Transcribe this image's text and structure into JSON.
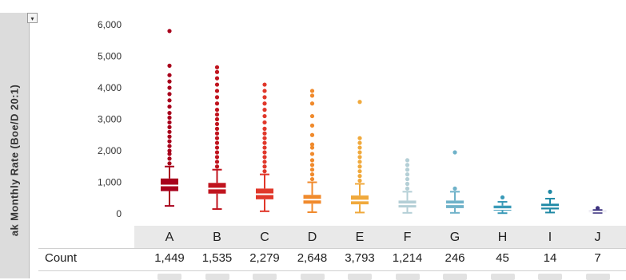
{
  "title_text": "",
  "ylabel_text": "ak Monthly Rate (Boe/D 20:1)",
  "menu_glyph": "▾",
  "stats": {
    "count_label": "Count"
  },
  "chart_data": {
    "type": "box",
    "title": "",
    "xlabel": "",
    "ylabel": "ak Monthly Rate (Boe/D 20:1)",
    "ylim": [
      -250,
      6200
    ],
    "yticks": [
      0,
      1000,
      2000,
      3000,
      4000,
      5000,
      6000
    ],
    "ytick_labels": [
      "0",
      "1,000",
      "2,000",
      "3,000",
      "4,000",
      "5,000",
      "6,000"
    ],
    "grid": false,
    "legend": "none",
    "categories": [
      "A",
      "B",
      "C",
      "D",
      "E",
      "F",
      "G",
      "H",
      "I",
      "J"
    ],
    "counts": [
      "1,449",
      "1,535",
      "2,279",
      "2,648",
      "3,793",
      "1,214",
      "246",
      "45",
      "14",
      "7"
    ],
    "colors": [
      "#a8001c",
      "#c0141e",
      "#e0372a",
      "#f08a2c",
      "#f0a93c",
      "#b4cfd6",
      "#6fb2c9",
      "#3a9ab8",
      "#1f89a5",
      "#3d3380"
    ],
    "boxes": [
      {
        "q1": 720,
        "median": 900,
        "q3": 1120,
        "whisker_low": 250,
        "whisker_high": 1500,
        "outliers": [
          1600,
          1750,
          1900,
          2000,
          2150,
          2300,
          2450,
          2600,
          2750,
          2900,
          3050,
          3200,
          3400,
          3600,
          3800,
          4000,
          4200,
          4400,
          4700,
          5800
        ]
      },
      {
        "q1": 640,
        "median": 800,
        "q3": 980,
        "whisker_low": 150,
        "whisker_high": 1400,
        "outliers": [
          1500,
          1650,
          1800,
          1950,
          2100,
          2250,
          2400,
          2550,
          2700,
          2850,
          3000,
          3150,
          3300,
          3500,
          3700,
          3900,
          4100,
          4300,
          4500,
          4650
        ]
      },
      {
        "q1": 460,
        "median": 620,
        "q3": 800,
        "whisker_low": 80,
        "whisker_high": 1250,
        "outliers": [
          1350,
          1500,
          1650,
          1800,
          1950,
          2100,
          2250,
          2400,
          2550,
          2700,
          2900,
          3100,
          3300,
          3500,
          3700,
          3900,
          4100
        ]
      },
      {
        "q1": 320,
        "median": 450,
        "q3": 600,
        "whisker_low": 50,
        "whisker_high": 1000,
        "outliers": [
          1100,
          1250,
          1400,
          1550,
          1700,
          1900,
          2100,
          2200,
          2500,
          2800,
          3100,
          3500,
          3750,
          3900
        ]
      },
      {
        "q1": 300,
        "median": 420,
        "q3": 580,
        "whisker_low": 40,
        "whisker_high": 950,
        "outliers": [
          1050,
          1200,
          1350,
          1500,
          1650,
          1800,
          1950,
          2100,
          2250,
          2400,
          3550
        ]
      },
      {
        "q1": 200,
        "median": 300,
        "q3": 420,
        "whisker_low": 30,
        "whisker_high": 700,
        "outliers": [
          800,
          950,
          1100,
          1250,
          1400,
          1550,
          1700
        ]
      },
      {
        "q1": 180,
        "median": 300,
        "q3": 420,
        "whisker_low": 30,
        "whisker_high": 700,
        "outliers": [
          800,
          1950
        ]
      },
      {
        "q1": 100,
        "median": 150,
        "q3": 260,
        "whisker_low": 20,
        "whisker_high": 380,
        "outliers": [
          520
        ]
      },
      {
        "q1": 140,
        "median": 220,
        "q3": 320,
        "whisker_low": 40,
        "whisker_high": 480,
        "outliers": [
          700
        ]
      },
      {
        "q1": 50,
        "median": 70,
        "q3": 100,
        "whisker_low": 30,
        "whisker_high": 120,
        "outliers": [
          180
        ]
      }
    ]
  }
}
